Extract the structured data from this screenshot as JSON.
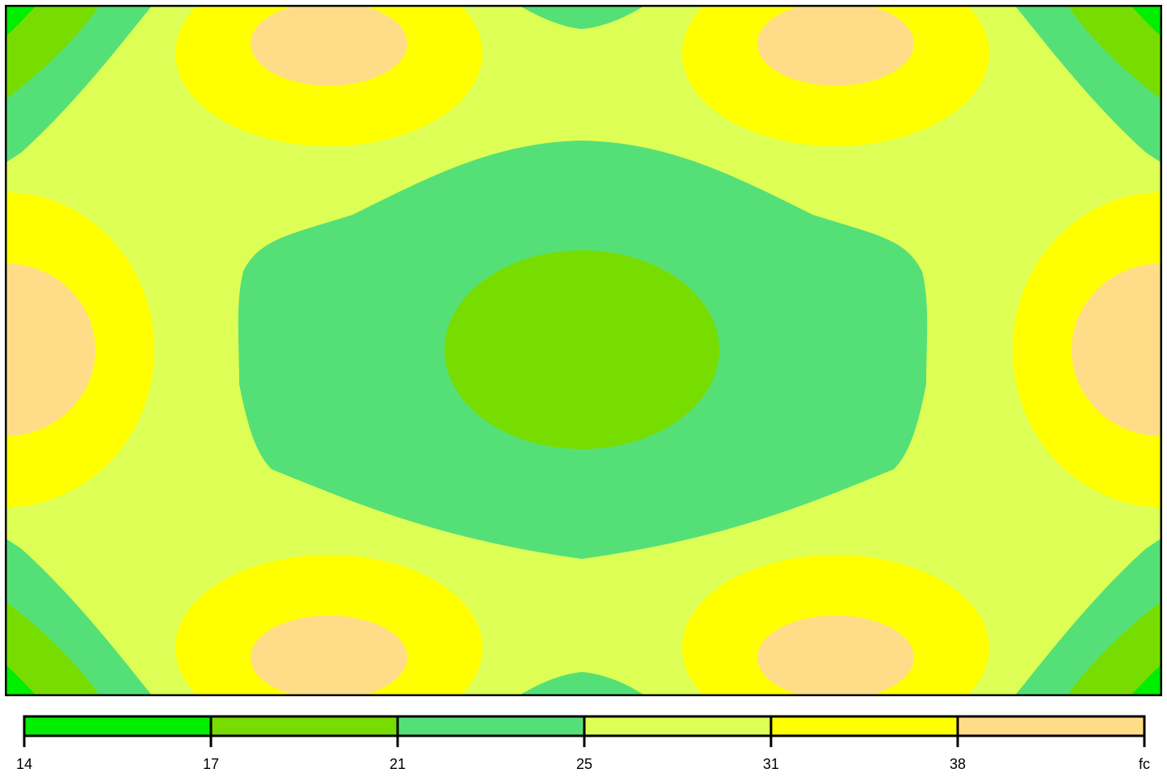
{
  "chart_data": {
    "type": "heatmap",
    "style": "filled-contour",
    "title": "",
    "xlabel": "",
    "ylabel": "",
    "grid": false,
    "legend_placement": "bottom",
    "colorbar": {
      "levels": [
        "14",
        "17",
        "21",
        "25",
        "31",
        "38"
      ],
      "unit": "fc",
      "bands": [
        {
          "from": 14,
          "to": 17,
          "color": "#00ee00"
        },
        {
          "from": 17,
          "to": 21,
          "color": "#77dd00"
        },
        {
          "from": 21,
          "to": 25,
          "color": "#55e077"
        },
        {
          "from": 25,
          "to": 31,
          "color": "#ddff55"
        },
        {
          "from": 31,
          "to": 38,
          "color": "#ffff00"
        },
        {
          "from": 38,
          "to": null,
          "color": "#ffdd88"
        }
      ]
    },
    "regions": {
      "background_band": 3,
      "center_low_band": 1,
      "center_ring_band": 2,
      "corner_bands": [
        0,
        1,
        2
      ],
      "hotspot_inner_band": 5,
      "hotspot_outer_band": 4
    }
  }
}
